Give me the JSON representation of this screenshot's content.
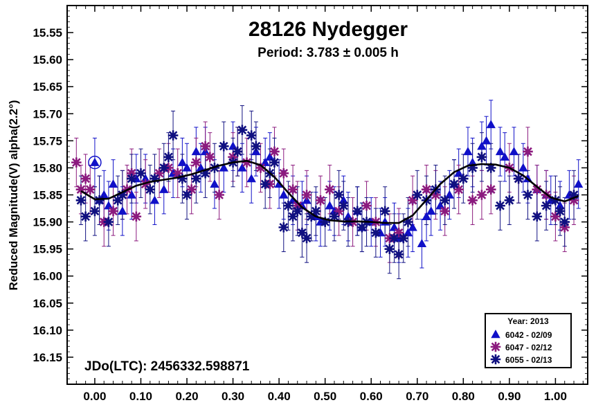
{
  "chart_data": {
    "type": "scatter",
    "title": "28126 Nydegger",
    "subtitle": "Period: 3.783 ± 0.005 h",
    "ylabel": "Reduced Magnitude(V) alpha(2.2°)",
    "xlabel": "",
    "annotation": "JDo(LTC): 2456332.598871",
    "xlim": [
      -0.06,
      1.07
    ],
    "ylim": [
      16.2,
      15.5
    ],
    "y_inverted": true,
    "xticks": [
      "0.00",
      "0.10",
      "0.20",
      "0.30",
      "0.40",
      "0.50",
      "0.60",
      "0.70",
      "0.80",
      "0.90",
      "1.00"
    ],
    "yticks": [
      "15.55",
      "15.60",
      "15.65",
      "15.70",
      "15.75",
      "15.80",
      "15.85",
      "15.90",
      "15.95",
      "16.00",
      "16.05",
      "16.10",
      "16.15"
    ],
    "legend": {
      "title": "Year: 2013",
      "placement": "bottom-right",
      "entries": [
        {
          "marker": "triangle",
          "label": "6042 - 02/09",
          "color": "#1010c8"
        },
        {
          "marker": "asterisk",
          "label": "6047 - 02/12",
          "color": "#8b1a7e"
        },
        {
          "marker": "asterisk",
          "label": "6055 - 02/13",
          "color": "#101080"
        }
      ]
    },
    "series": [
      {
        "name": "6042 - 02/09",
        "marker": "triangle",
        "color": "#1010c8",
        "points": [
          [
            0.0,
            15.79
          ],
          [
            0.01,
            15.86
          ],
          [
            0.02,
            15.85
          ],
          [
            0.03,
            15.87
          ],
          [
            0.04,
            15.83
          ],
          [
            0.06,
            15.88
          ],
          [
            0.08,
            15.85
          ],
          [
            0.09,
            15.82
          ],
          [
            0.11,
            15.82
          ],
          [
            0.13,
            15.86
          ],
          [
            0.15,
            15.84
          ],
          [
            0.17,
            15.81
          ],
          [
            0.19,
            15.79
          ],
          [
            0.2,
            15.8
          ],
          [
            0.22,
            15.77
          ],
          [
            0.23,
            15.8
          ],
          [
            0.24,
            15.77
          ],
          [
            0.26,
            15.83
          ],
          [
            0.28,
            15.8
          ],
          [
            0.3,
            15.76
          ],
          [
            0.32,
            15.8
          ],
          [
            0.34,
            15.82
          ],
          [
            0.35,
            15.77
          ],
          [
            0.37,
            15.79
          ],
          [
            0.38,
            15.78
          ],
          [
            0.4,
            15.83
          ],
          [
            0.41,
            15.85
          ],
          [
            0.43,
            15.86
          ],
          [
            0.45,
            15.87
          ],
          [
            0.46,
            15.86
          ],
          [
            0.48,
            15.89
          ],
          [
            0.49,
            15.9
          ],
          [
            0.51,
            15.87
          ],
          [
            0.52,
            15.88
          ],
          [
            0.54,
            15.86
          ],
          [
            0.55,
            15.89
          ],
          [
            0.57,
            15.88
          ],
          [
            0.58,
            15.91
          ],
          [
            0.6,
            15.9
          ],
          [
            0.62,
            15.92
          ],
          [
            0.63,
            15.9
          ],
          [
            0.65,
            15.91
          ],
          [
            0.66,
            15.93
          ],
          [
            0.68,
            15.92
          ],
          [
            0.69,
            15.91
          ],
          [
            0.71,
            15.94
          ],
          [
            0.72,
            15.89
          ],
          [
            0.73,
            15.88
          ],
          [
            0.75,
            15.87
          ],
          [
            0.77,
            15.85
          ],
          [
            0.78,
            15.83
          ],
          [
            0.79,
            15.81
          ],
          [
            0.81,
            15.77
          ],
          [
            0.82,
            15.79
          ],
          [
            0.84,
            15.76
          ],
          [
            0.85,
            15.75
          ],
          [
            0.86,
            15.72
          ],
          [
            0.88,
            15.77
          ],
          [
            0.89,
            15.78
          ],
          [
            0.91,
            15.77
          ],
          [
            0.93,
            15.8
          ],
          [
            0.94,
            15.82
          ],
          [
            0.96,
            15.84
          ],
          [
            0.98,
            15.85
          ],
          [
            0.99,
            15.86
          ],
          [
            1.01,
            15.87
          ],
          [
            1.03,
            15.85
          ],
          [
            1.05,
            15.83
          ]
        ]
      },
      {
        "name": "6047 - 02/12",
        "marker": "asterisk",
        "color": "#8b1a7e",
        "points": [
          [
            -0.04,
            15.79
          ],
          [
            -0.03,
            15.84
          ],
          [
            -0.02,
            15.82
          ],
          [
            -0.01,
            15.84
          ],
          [
            0.02,
            15.9
          ],
          [
            0.04,
            15.88
          ],
          [
            0.06,
            15.85
          ],
          [
            0.07,
            15.84
          ],
          [
            0.08,
            15.81
          ],
          [
            0.09,
            15.89
          ],
          [
            0.11,
            15.83
          ],
          [
            0.14,
            15.81
          ],
          [
            0.16,
            15.8
          ],
          [
            0.18,
            15.81
          ],
          [
            0.21,
            15.84
          ],
          [
            0.22,
            15.79
          ],
          [
            0.24,
            15.76
          ],
          [
            0.25,
            15.78
          ],
          [
            0.27,
            15.85
          ],
          [
            0.3,
            15.78
          ],
          [
            0.31,
            15.77
          ],
          [
            0.33,
            15.79
          ],
          [
            0.36,
            15.8
          ],
          [
            0.38,
            15.83
          ],
          [
            0.39,
            15.77
          ],
          [
            0.41,
            15.81
          ],
          [
            0.43,
            15.84
          ],
          [
            0.44,
            15.87
          ],
          [
            0.46,
            15.85
          ],
          [
            0.49,
            15.86
          ],
          [
            0.51,
            15.84
          ],
          [
            0.53,
            15.88
          ],
          [
            0.56,
            15.9
          ],
          [
            0.59,
            15.87
          ],
          [
            0.61,
            15.9
          ],
          [
            0.64,
            15.93
          ],
          [
            0.66,
            15.92
          ],
          [
            0.69,
            15.86
          ],
          [
            0.72,
            15.84
          ],
          [
            0.74,
            15.85
          ],
          [
            0.76,
            15.88
          ],
          [
            0.79,
            15.84
          ],
          [
            0.82,
            15.86
          ],
          [
            0.84,
            15.85
          ],
          [
            0.86,
            15.84
          ],
          [
            0.9,
            15.8
          ],
          [
            0.92,
            15.82
          ],
          [
            0.94,
            15.77
          ],
          [
            0.96,
            15.84
          ],
          [
            0.98,
            15.85
          ],
          [
            1.0,
            15.89
          ],
          [
            1.02,
            15.91
          ],
          [
            1.04,
            15.86
          ]
        ]
      },
      {
        "name": "6055 - 02/13",
        "marker": "asterisk",
        "color": "#101080",
        "points": [
          [
            -0.03,
            15.86
          ],
          [
            -0.02,
            15.89
          ],
          [
            0.0,
            15.88
          ],
          [
            0.01,
            15.86
          ],
          [
            0.03,
            15.9
          ],
          [
            0.05,
            15.86
          ],
          [
            0.06,
            15.85
          ],
          [
            0.08,
            15.82
          ],
          [
            0.1,
            15.81
          ],
          [
            0.12,
            15.84
          ],
          [
            0.13,
            15.82
          ],
          [
            0.15,
            15.8
          ],
          [
            0.16,
            15.78
          ],
          [
            0.17,
            15.74
          ],
          [
            0.19,
            15.82
          ],
          [
            0.2,
            15.85
          ],
          [
            0.22,
            15.82
          ],
          [
            0.24,
            15.81
          ],
          [
            0.26,
            15.8
          ],
          [
            0.28,
            15.76
          ],
          [
            0.3,
            15.79
          ],
          [
            0.31,
            15.77
          ],
          [
            0.32,
            15.73
          ],
          [
            0.34,
            15.74
          ],
          [
            0.35,
            15.76
          ],
          [
            0.37,
            15.83
          ],
          [
            0.38,
            15.81
          ],
          [
            0.39,
            15.79
          ],
          [
            0.41,
            15.91
          ],
          [
            0.42,
            15.87
          ],
          [
            0.43,
            15.89
          ],
          [
            0.44,
            15.88
          ],
          [
            0.45,
            15.92
          ],
          [
            0.46,
            15.93
          ],
          [
            0.47,
            15.89
          ],
          [
            0.48,
            15.88
          ],
          [
            0.5,
            15.9
          ],
          [
            0.52,
            15.89
          ],
          [
            0.53,
            15.85
          ],
          [
            0.54,
            15.87
          ],
          [
            0.55,
            15.9
          ],
          [
            0.57,
            15.88
          ],
          [
            0.58,
            15.91
          ],
          [
            0.59,
            15.9
          ],
          [
            0.61,
            15.92
          ],
          [
            0.63,
            15.88
          ],
          [
            0.64,
            15.95
          ],
          [
            0.65,
            15.93
          ],
          [
            0.66,
            15.96
          ],
          [
            0.67,
            15.93
          ],
          [
            0.68,
            15.9
          ],
          [
            0.7,
            15.85
          ],
          [
            0.72,
            15.86
          ],
          [
            0.74,
            15.84
          ],
          [
            0.76,
            15.86
          ],
          [
            0.78,
            15.83
          ],
          [
            0.8,
            15.82
          ],
          [
            0.82,
            15.8
          ],
          [
            0.84,
            15.78
          ],
          [
            0.86,
            15.8
          ],
          [
            0.88,
            15.87
          ],
          [
            0.9,
            15.86
          ],
          [
            0.92,
            15.82
          ],
          [
            0.94,
            15.85
          ],
          [
            0.96,
            15.89
          ],
          [
            0.98,
            15.87
          ],
          [
            1.0,
            15.86
          ],
          [
            1.01,
            15.88
          ],
          [
            1.02,
            15.9
          ],
          [
            1.04,
            15.85
          ]
        ]
      }
    ],
    "fit_curve": {
      "color": "#000000",
      "points": [
        [
          -0.03,
          15.843
        ],
        [
          0.0,
          15.858
        ],
        [
          0.03,
          15.857
        ],
        [
          0.06,
          15.845
        ],
        [
          0.09,
          15.833
        ],
        [
          0.12,
          15.826
        ],
        [
          0.15,
          15.822
        ],
        [
          0.18,
          15.818
        ],
        [
          0.21,
          15.812
        ],
        [
          0.24,
          15.804
        ],
        [
          0.27,
          15.796
        ],
        [
          0.3,
          15.79
        ],
        [
          0.33,
          15.787
        ],
        [
          0.36,
          15.795
        ],
        [
          0.39,
          15.817
        ],
        [
          0.42,
          15.846
        ],
        [
          0.45,
          15.873
        ],
        [
          0.48,
          15.89
        ],
        [
          0.51,
          15.897
        ],
        [
          0.54,
          15.899
        ],
        [
          0.57,
          15.899
        ],
        [
          0.6,
          15.9
        ],
        [
          0.63,
          15.902
        ],
        [
          0.66,
          15.902
        ],
        [
          0.69,
          15.888
        ],
        [
          0.72,
          15.859
        ],
        [
          0.75,
          15.83
        ],
        [
          0.78,
          15.808
        ],
        [
          0.81,
          15.796
        ],
        [
          0.84,
          15.793
        ],
        [
          0.87,
          15.794
        ],
        [
          0.9,
          15.8
        ],
        [
          0.93,
          15.814
        ],
        [
          0.96,
          15.835
        ],
        [
          0.99,
          15.855
        ],
        [
          1.02,
          15.862
        ],
        [
          1.05,
          15.852
        ]
      ]
    }
  }
}
